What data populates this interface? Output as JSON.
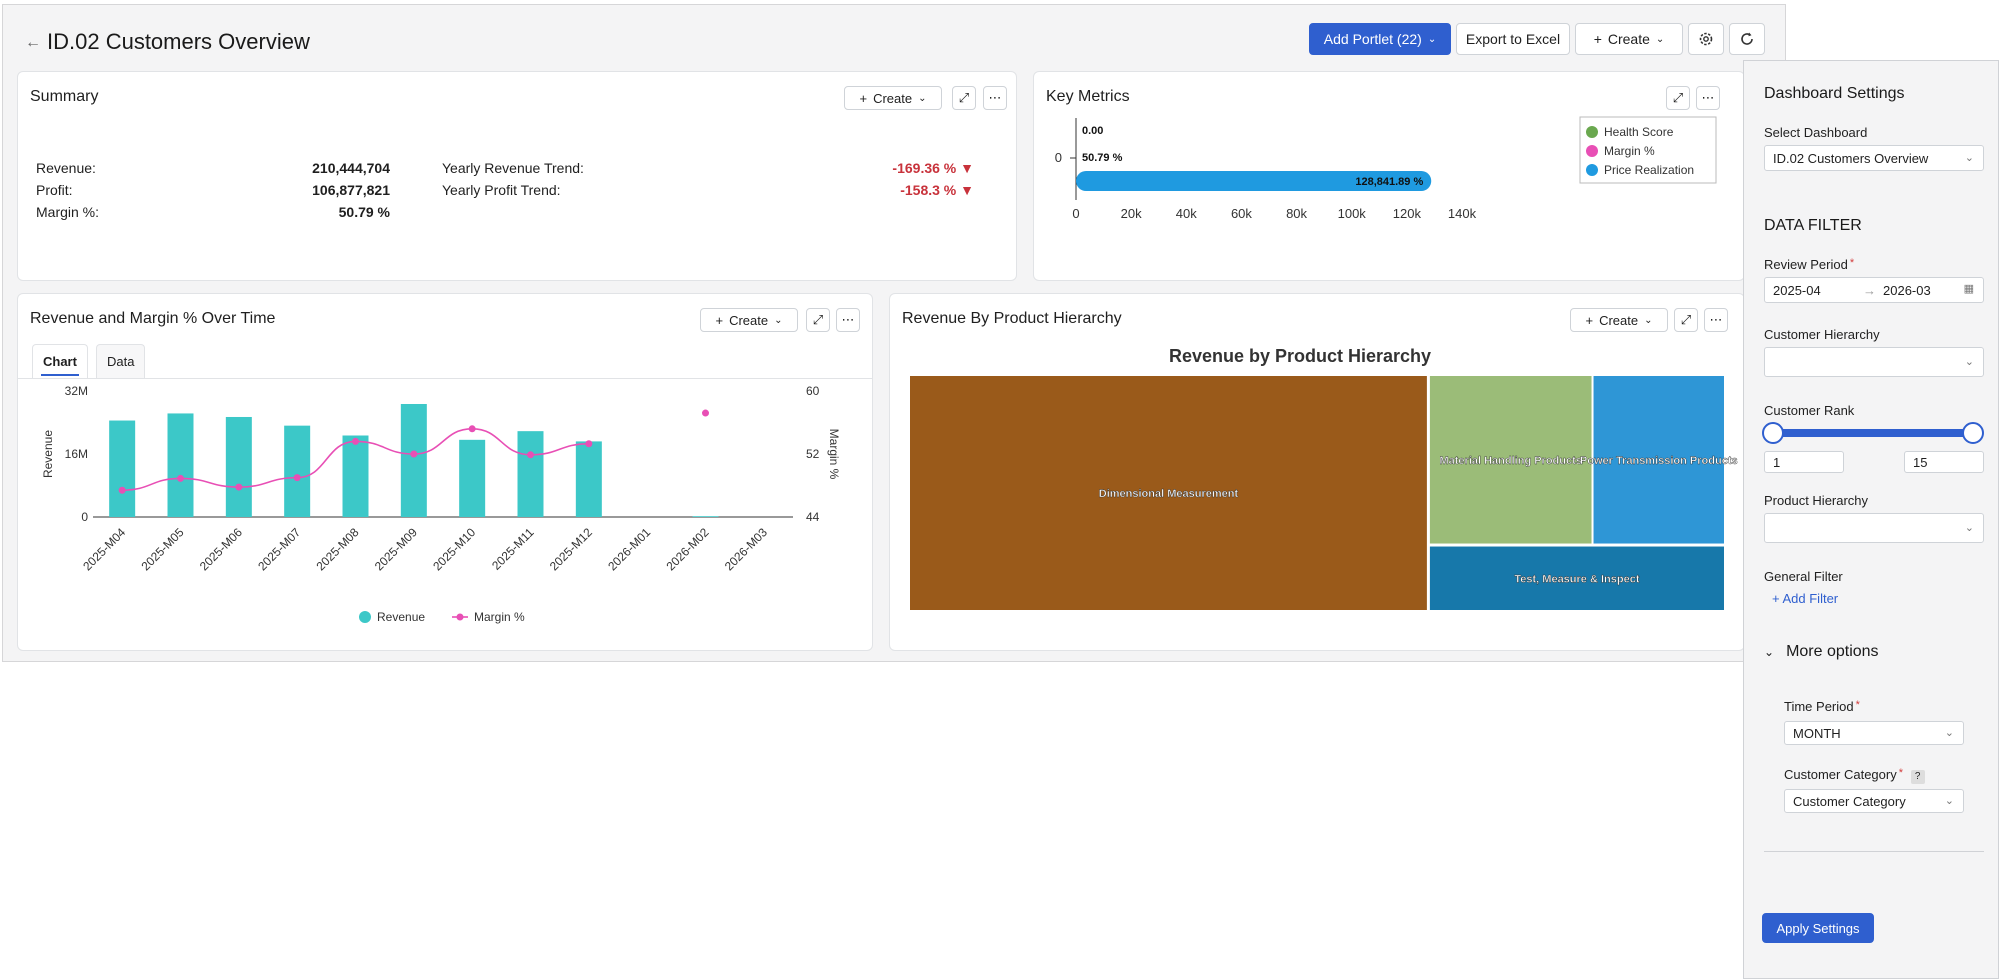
{
  "header": {
    "back_icon": "arrow-left-icon",
    "title": "ID.02 Customers Overview",
    "add_portlet_label": "Add Portlet (22)",
    "export_label": "Export to Excel",
    "create_label": "Create"
  },
  "summary": {
    "title": "Summary",
    "create_label": "Create",
    "rows": [
      {
        "label": "Revenue:",
        "value": "210,444,704"
      },
      {
        "label": "Profit:",
        "value": "106,877,821"
      },
      {
        "label": "Margin %:",
        "value": "50.79 %"
      }
    ],
    "trends": [
      {
        "label": "Yearly Revenue Trend:",
        "value": "-169.36 %"
      },
      {
        "label": "Yearly Profit Trend:",
        "value": "-158.3 %"
      }
    ]
  },
  "key_metrics": {
    "title": "Key Metrics",
    "chart_data": {
      "type": "bar",
      "orientation": "horizontal",
      "categories": [
        "0"
      ],
      "series": [
        {
          "name": "Health Score",
          "values": [
            0
          ],
          "label": "0.00",
          "color": "#6aa84f"
        },
        {
          "name": "Margin %",
          "values": [
            50.79
          ],
          "label": "50.79 %",
          "color": "#e84fb5"
        },
        {
          "name": "Price Realization",
          "values": [
            128841.89
          ],
          "label": "128,841.89 %",
          "color": "#1f9ae0"
        }
      ],
      "xlim": [
        0,
        140000
      ],
      "xticks": [
        "0",
        "20k",
        "40k",
        "60k",
        "80k",
        "100k",
        "120k",
        "140k"
      ],
      "legend": "top-right"
    }
  },
  "revenue_margin": {
    "title": "Revenue and Margin % Over Time",
    "create_label": "Create",
    "tabs": [
      "Chart",
      "Data"
    ],
    "chart_data": {
      "type": "bar",
      "categories": [
        "2025-M04",
        "2025-M05",
        "2025-M06",
        "2025-M07",
        "2025-M08",
        "2025-M09",
        "2025-M10",
        "2025-M11",
        "2025-M12",
        "2026-M01",
        "2026-M02",
        "2026-M03"
      ],
      "series": [
        {
          "name": "Revenue",
          "type": "bar",
          "axis": "left",
          "color": "#3cc8c8",
          "values": [
            24500000,
            26300000,
            25400000,
            23200000,
            20700000,
            28700000,
            19600000,
            21800000,
            19200000,
            0,
            200000,
            0
          ]
        },
        {
          "name": "Margin %",
          "type": "line",
          "axis": "right",
          "color": "#e84fb5",
          "values": [
            47.4,
            48.9,
            47.8,
            49.0,
            53.6,
            52.0,
            55.2,
            51.9,
            53.3,
            null,
            57.2,
            null
          ]
        }
      ],
      "ylabel": "Revenue",
      "y2label": "Margin %",
      "ylim": [
        0,
        32000000
      ],
      "yticks": [
        "0",
        "16M",
        "32M"
      ],
      "y2lim": [
        44,
        60
      ],
      "y2ticks": [
        "44",
        "52",
        "60"
      ],
      "legend": "bottom-center"
    }
  },
  "product_hierarchy": {
    "title": "Revenue By Product Hierarchy",
    "create_label": "Create",
    "chart_data": {
      "type": "treemap",
      "title": "Revenue by Product Hierarchy",
      "items": [
        {
          "name": "Dimensional Measurement",
          "share": 0.635,
          "color": "#9a5a1a"
        },
        {
          "name": "Material Handling Products",
          "share": 0.148,
          "color": "#9bbc78"
        },
        {
          "name": "Power Transmission Products",
          "share": 0.118,
          "color": "#2e96d6"
        },
        {
          "name": "Test, Measure & Inspect",
          "share": 0.099,
          "color": "#1778aa"
        }
      ]
    }
  },
  "settings": {
    "title": "Dashboard Settings",
    "select_dashboard_label": "Select Dashboard",
    "select_dashboard_value": "ID.02 Customers Overview",
    "data_filter_heading": "DATA FILTER",
    "review_period_label": "Review Period",
    "review_period_from": "2025-04",
    "review_period_to": "2026-03",
    "customer_hierarchy_label": "Customer Hierarchy",
    "customer_rank_label": "Customer Rank",
    "rank_min": "1",
    "rank_max": "15",
    "product_hierarchy_label": "Product Hierarchy",
    "general_filter_label": "General Filter",
    "add_filter_label": "Add Filter",
    "more_options_label": "More options",
    "time_period_label": "Time Period",
    "time_period_value": "MONTH",
    "customer_category_label": "Customer Category",
    "customer_category_value": "Customer Category",
    "help_badge": "?",
    "apply_label": "Apply Settings"
  }
}
